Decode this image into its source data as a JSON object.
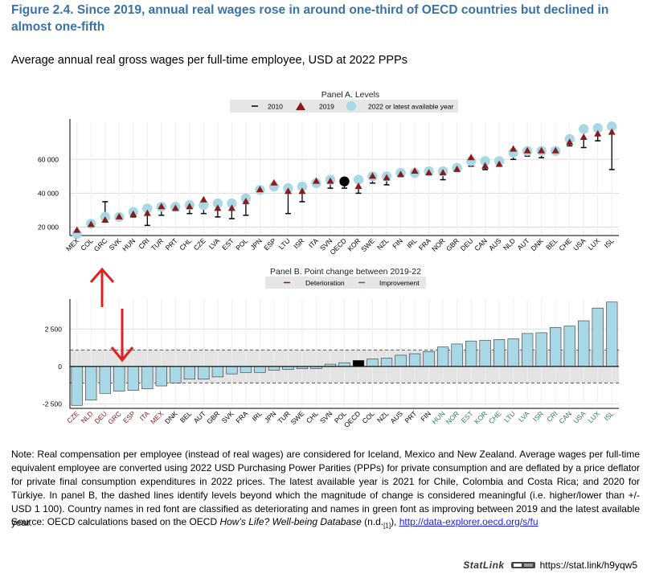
{
  "figure": {
    "title": "Figure 2.4. Since 2019, annual real wages rose in around one-third of OECD countries but declined in almost one-fifth",
    "subtitle": "Average annual real gross wages per full-time employee, USD at 2022 PPPs"
  },
  "chart_data": [
    {
      "type": "scatter",
      "title": "Panel A. Levels",
      "legend_position": "top",
      "legend": [
        {
          "label": "2010",
          "marker": "dash",
          "color": "#000000"
        },
        {
          "label": "2019",
          "marker": "triangle",
          "color": "#8b1a1a"
        },
        {
          "label": "2022  or latest available year",
          "marker": "circle",
          "color": "#a8d8e6"
        }
      ],
      "ylim": [
        15000,
        82000
      ],
      "yticks": [
        20000,
        40000,
        60000
      ],
      "ytick_labels": [
        "20 000",
        "40 000",
        "60 000"
      ],
      "grid": true,
      "categories": [
        "MEX",
        "COL",
        "GRC",
        "SVK",
        "HUN",
        "CRI",
        "TUR",
        "PRT",
        "CHL",
        "CZE",
        "LVA",
        "EST",
        "POL",
        "JPN",
        "ESP",
        "LTU",
        "ISR",
        "ITA",
        "SVN",
        "OECD",
        "KOR",
        "SWE",
        "NZL",
        "FIN",
        "IRL",
        "FRA",
        "NOR",
        "GBR",
        "DEU",
        "CAN",
        "AUS",
        "NLD",
        "AUT",
        "DNK",
        "BEL",
        "CHE",
        "USA",
        "LUX",
        "ISL"
      ],
      "series": [
        {
          "name": "2010",
          "values": [
            17000,
            21000,
            35000,
            27000,
            26000,
            21000,
            27000,
            31000,
            28000,
            28000,
            26000,
            25000,
            27000,
            41000,
            46000,
            28000,
            35000,
            44000,
            43000,
            43000,
            40000,
            46000,
            45000,
            51000,
            52000,
            51000,
            48000,
            55000,
            56000,
            54000,
            56000,
            60000,
            62000,
            61000,
            64000,
            68000,
            67000,
            71000,
            54000
          ]
        },
        {
          "name": "2019",
          "values": [
            18000,
            21500,
            24000,
            26000,
            27500,
            28000,
            32000,
            31000,
            32000,
            36000,
            31000,
            31000,
            35000,
            42000,
            46000,
            41000,
            41000,
            47000,
            47000,
            47000,
            44000,
            50000,
            49000,
            51000,
            53000,
            52000,
            52000,
            54000,
            61000,
            56000,
            57000,
            66000,
            65000,
            65000,
            65000,
            70000,
            73000,
            75000,
            76000
          ]
        },
        {
          "name": "2022  or latest available year",
          "values": [
            16000,
            22000,
            26000,
            26000,
            29000,
            31000,
            32000,
            32000,
            33000,
            33000,
            34000,
            34000,
            37000,
            42000,
            44000,
            43000,
            44000,
            46000,
            48000,
            47000,
            48000,
            50000,
            50000,
            52000,
            52000,
            53000,
            53000,
            55000,
            59000,
            59000,
            59000,
            64000,
            65000,
            65000,
            65000,
            72000,
            78000,
            78500,
            79500
          ]
        }
      ],
      "highlight": {
        "category": "OECD",
        "color": "#000000"
      }
    },
    {
      "type": "bar",
      "title": "Panel B. Point change between 2019-22",
      "legend_position": "top",
      "legend": [
        {
          "label": "Deterioration",
          "color": "#8b1a1a"
        },
        {
          "label": "Improvement",
          "color": "#2e7d4f"
        }
      ],
      "ylim": [
        -2800,
        4500
      ],
      "yticks": [
        -2500,
        0,
        2500
      ],
      "ytick_labels": [
        "-2 500",
        "0",
        "2 500"
      ],
      "threshold": [
        -1100,
        1100
      ],
      "grid": true,
      "categories": [
        "CZE",
        "NLD",
        "DEU",
        "GRC",
        "ESP",
        "ITA",
        "MEX",
        "DNK",
        "BEL",
        "AUT",
        "GBR",
        "SVK",
        "FRA",
        "IRL",
        "JPN",
        "TUR",
        "SWE",
        "CHL",
        "SVN",
        "POL",
        "OECD",
        "COL",
        "NZL",
        "AUS",
        "PRT",
        "FIN",
        "HUN",
        "NOR",
        "EST",
        "KOR",
        "CHE",
        "LTU",
        "LVA",
        "ISR",
        "CRI",
        "CAN",
        "USA",
        "LUX",
        "ISL"
      ],
      "values": [
        -2600,
        -2250,
        -1800,
        -1650,
        -1600,
        -1500,
        -1300,
        -1100,
        -850,
        -850,
        -700,
        -500,
        -400,
        -400,
        -250,
        -200,
        -150,
        -150,
        150,
        250,
        400,
        500,
        550,
        750,
        850,
        1000,
        1300,
        1500,
        1700,
        1750,
        1800,
        1850,
        2200,
        2250,
        2600,
        2700,
        3050,
        3900,
        4300
      ],
      "label_colors": {
        "deterioration": [
          "CZE",
          "NLD",
          "DEU",
          "GRC",
          "ESP",
          "ITA",
          "MEX"
        ],
        "improvement": [
          "HUN",
          "NOR",
          "EST",
          "KOR",
          "CHE",
          "LTU",
          "LVA",
          "ISR",
          "CRI",
          "CAN",
          "USA",
          "LUX",
          "ISL"
        ]
      },
      "highlight": {
        "category": "OECD",
        "color": "#000000"
      }
    }
  ],
  "annotations": {
    "arrow_up_color": "#e02020",
    "arrow_down_color": "#e02020"
  },
  "note": "Note: Real compensation per employee (instead of real wages) are considered for Iceland, Mexico and New Zealand. Average wages per full-time equivalent employee are converted using 2022 USD Purchasing Power Parities (PPPs) for private consumption and are deflated by a price deflator for private final consumption expenditures in 2022 prices. The latest available year is 2021 for Chile, Colombia and Costa Rica; and 2020 for Türkiye. In panel B, the dashed lines identify levels beyond which the magnitude of change is considered meaningful (i.e. higher/lower than +/- USD 1 100). Country names in red font are classified as deteriorating and names in green font as improving between 2019 and the latest available year.",
  "source": {
    "prefix": "Source: OECD calculations based on the OECD ",
    "italic": "How’s Life? Well-being Database",
    "middle": " (n.d.",
    "ref": "[1]",
    "suffix": "), ",
    "link": "http://data-explorer.oecd.org/s/fu"
  },
  "statlink": {
    "label": "StatLink",
    "url": "https://stat.link/h9yqw5"
  }
}
